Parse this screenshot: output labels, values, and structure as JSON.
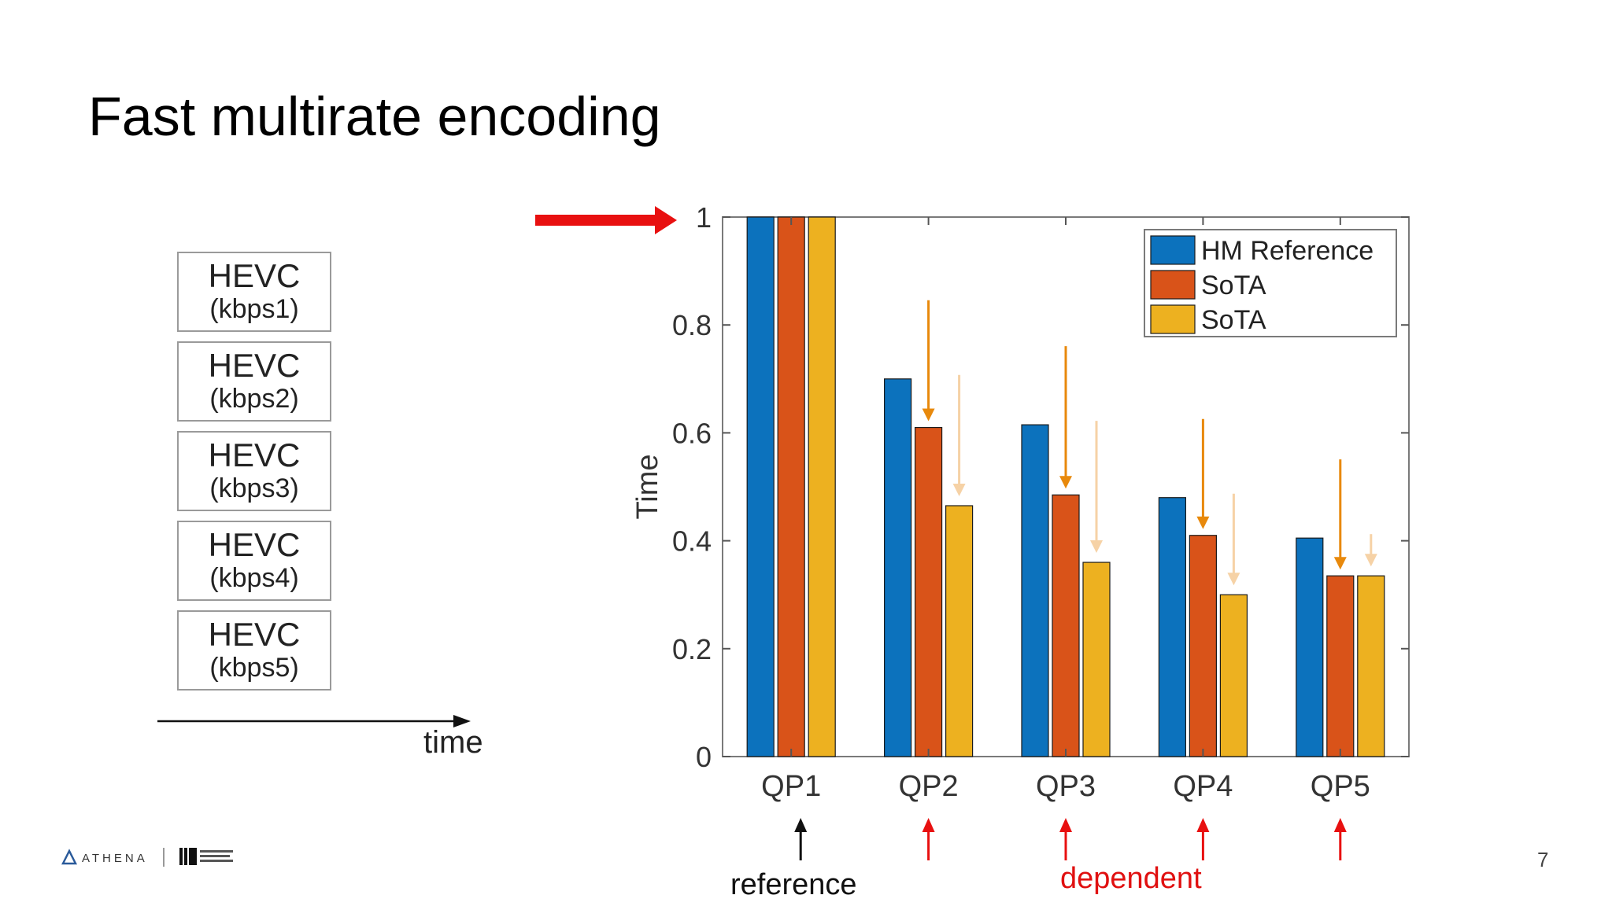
{
  "slide": {
    "title": "Fast multirate encoding",
    "page_number": "7"
  },
  "left_diagram": {
    "boxes": [
      {
        "name": "HEVC",
        "rate": "(kbps1)"
      },
      {
        "name": "HEVC",
        "rate": "(kbps2)"
      },
      {
        "name": "HEVC",
        "rate": "(kbps3)"
      },
      {
        "name": "HEVC",
        "rate": "(kbps4)"
      },
      {
        "name": "HEVC",
        "rate": "(kbps5)"
      }
    ],
    "axis_label": "time"
  },
  "annotations": {
    "reference_label": "reference",
    "dependent_label": "dependent"
  },
  "colors": {
    "hm_reference": "#0c72bd",
    "sota_1": "#d95319",
    "sota_2": "#edb120",
    "highlight_red": "#e81010",
    "arrow_orange": "#e8890c",
    "arrow_light": "#f6d2a6"
  },
  "chart_data": {
    "type": "bar",
    "categories": [
      "QP1",
      "QP2",
      "QP3",
      "QP4",
      "QP5"
    ],
    "series": [
      {
        "name": "HM Reference",
        "values": [
          1.0,
          0.7,
          0.615,
          0.48,
          0.405
        ]
      },
      {
        "name": "SoTA",
        "values": [
          1.0,
          0.61,
          0.485,
          0.41,
          0.335
        ]
      },
      {
        "name": "SoTA",
        "values": [
          1.0,
          0.465,
          0.36,
          0.3,
          0.335
        ]
      }
    ],
    "title": "",
    "xlabel": "",
    "ylabel": "Time",
    "ylim": [
      0,
      1
    ],
    "yticks": [
      "0",
      "0.2",
      "0.4",
      "0.6",
      "0.8",
      "1"
    ],
    "legend_position": "top-right",
    "grid": false
  },
  "logos": {
    "athena": "ATHENA"
  }
}
